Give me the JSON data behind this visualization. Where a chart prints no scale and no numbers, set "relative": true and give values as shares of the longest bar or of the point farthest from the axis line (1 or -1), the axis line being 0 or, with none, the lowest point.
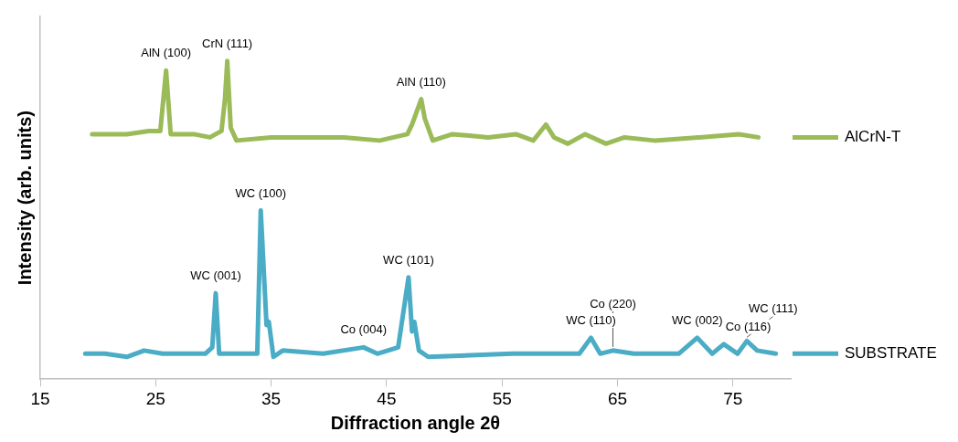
{
  "chart_data": {
    "type": "line",
    "xlabel": "Diffraction angle 2θ",
    "ylabel": "Intensity (arb. units)",
    "relative": true,
    "xlim": [
      15,
      80
    ],
    "xticks": [
      15,
      25,
      35,
      45,
      55,
      65,
      75
    ],
    "grid": false,
    "legend": "right",
    "marker": "none",
    "line_style": "solid",
    "series": [
      {
        "name": "AlCrN-T",
        "color": "#9bbb59",
        "x": [
          19.5,
          22.5,
          24.4,
          25.4,
          25.9,
          26.3,
          26.8,
          28.3,
          29.7,
          30.7,
          31.0,
          31.2,
          31.5,
          32.0,
          35.0,
          41.3,
          44.4,
          46.8,
          47.2,
          48.0,
          48.3,
          49.0,
          50.7,
          53.8,
          56.2,
          57.7,
          58.8,
          59.5,
          60.7,
          62.2,
          64.0,
          65.6,
          68.2,
          72.1,
          75.5,
          77.2
        ],
        "values": [
          0.77,
          0.77,
          0.78,
          0.78,
          0.97,
          0.77,
          0.77,
          0.77,
          0.76,
          0.78,
          0.88,
          1,
          0.79,
          0.75,
          0.76,
          0.76,
          0.75,
          0.77,
          0.8,
          0.88,
          0.82,
          0.75,
          0.77,
          0.76,
          0.77,
          0.75,
          0.8,
          0.76,
          0.74,
          0.77,
          0.74,
          0.76,
          0.75,
          0.76,
          0.77,
          0.76
        ]
      },
      {
        "name": "SUBSTRATE",
        "color": "#4bacc6",
        "x": [
          18.9,
          20.6,
          22.5,
          24.0,
          25.6,
          29.3,
          29.9,
          30.2,
          30.5,
          30.8,
          33.8,
          34.1,
          34.6,
          34.8,
          35.2,
          36.0,
          39.5,
          43.0,
          44.2,
          46.0,
          46.9,
          47.2,
          47.4,
          47.8,
          48.6,
          55.9,
          61.7,
          62.7,
          63.5,
          64.6,
          66.4,
          70.3,
          71.9,
          73.2,
          74.2,
          75.4,
          76.2,
          77.1,
          78.7
        ],
        "values": [
          0.08,
          0.08,
          0.07,
          0.09,
          0.08,
          0.08,
          0.1,
          0.27,
          0.08,
          0.08,
          0.08,
          0.53,
          0.17,
          0.18,
          0.07,
          0.09,
          0.08,
          0.1,
          0.08,
          0.1,
          0.32,
          0.15,
          0.18,
          0.09,
          0.07,
          0.08,
          0.08,
          0.13,
          0.08,
          0.09,
          0.08,
          0.08,
          0.13,
          0.08,
          0.11,
          0.08,
          0.12,
          0.09,
          0.08
        ]
      }
    ],
    "annotations": [
      {
        "text": "AlN (100)",
        "x": 25.9,
        "y": 0.97
      },
      {
        "text": "CrN (111)",
        "x": 31.2,
        "y": 1
      },
      {
        "text": "AlN (110)",
        "x": 48.0,
        "y": 0.88
      },
      {
        "text": "WC (001)",
        "x": 30.2,
        "y": 0.27
      },
      {
        "text": "WC (100)",
        "x": 34.1,
        "y": 0.53
      },
      {
        "text": "Co (004)",
        "x": 43.0,
        "y": 0.1
      },
      {
        "text": "WC (101)",
        "x": 46.9,
        "y": 0.32
      },
      {
        "text": "WC (110)",
        "x": 62.7,
        "y": 0.13
      },
      {
        "text": "Co (220)",
        "x": 64.6,
        "y": 0.09
      },
      {
        "text": "WC (002)",
        "x": 71.9,
        "y": 0.13
      },
      {
        "text": "Co (116)",
        "x": 74.2,
        "y": 0.11
      },
      {
        "text": "WC (111)",
        "x": 76.2,
        "y": 0.12
      }
    ]
  }
}
